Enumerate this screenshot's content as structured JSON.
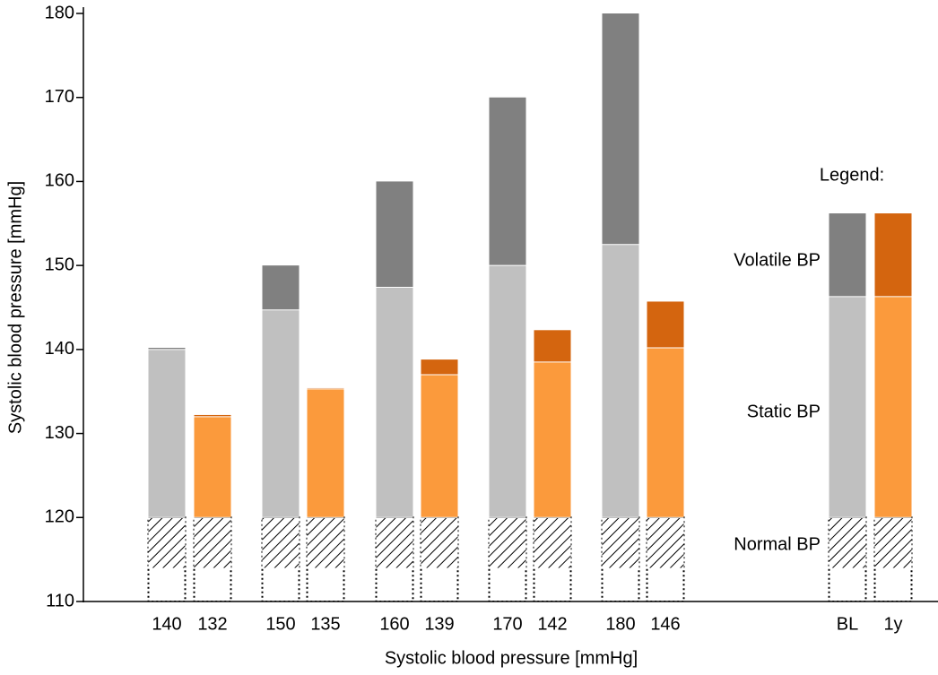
{
  "chart_data": {
    "type": "bar",
    "x_label": "Systolic blood pressure [mmHg]",
    "y_label": "Systolic blood pressure [mmHg]",
    "legend_title": "Legend:",
    "categories": [
      "140",
      "132",
      "150",
      "135",
      "160",
      "139",
      "170",
      "142",
      "180",
      "146",
      "BL",
      "1y"
    ],
    "ylim": [
      110,
      180
    ],
    "yticks": [
      110,
      120,
      130,
      140,
      150,
      160,
      170,
      180
    ],
    "series": [
      {
        "name": "Normal BP",
        "color": "#000000",
        "values": [
          120,
          120,
          120,
          120,
          120,
          120,
          120,
          120,
          120,
          120,
          120,
          120
        ]
      },
      {
        "name": "Static BP",
        "colors": [
          "#c0c0c0",
          "#fb9a3c",
          "#c0c0c0",
          "#fb9a3c",
          "#c0c0c0",
          "#fb9a3c",
          "#c0c0c0",
          "#fb9a3c",
          "#c0c0c0",
          "#fb9a3c",
          "#c0c0c0",
          "#fb9a3c"
        ],
        "values": [
          20,
          12,
          24.7,
          15.3,
          27.4,
          17,
          30,
          18.5,
          32.5,
          20.2,
          26.3,
          26.3
        ]
      },
      {
        "name": "Volatile BP",
        "colors": [
          "#808080",
          "#d4650f",
          "#808080",
          "#d4650f",
          "#808080",
          "#d4650f",
          "#808080",
          "#d4650f",
          "#808080",
          "#d4650f",
          "#808080",
          "#d4650f"
        ],
        "values": [
          0.2,
          0.2,
          5.3,
          0.1,
          12.6,
          1.8,
          20,
          3.8,
          27.5,
          5.5,
          9.9,
          9.9
        ]
      }
    ]
  }
}
